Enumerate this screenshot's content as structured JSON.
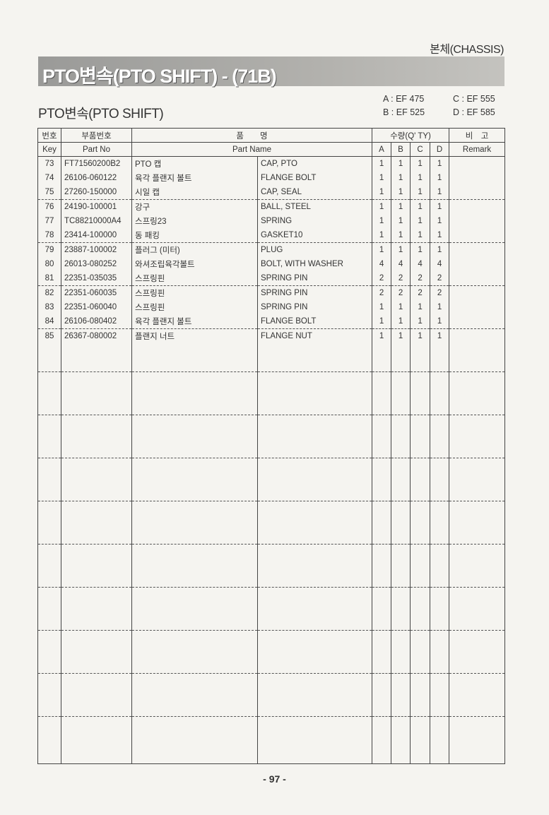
{
  "section": "본체(CHASSIS)",
  "banner_title": "PTO변속(PTO SHIFT) - (71B)",
  "subtitle": "PTO변속(PTO SHIFT)",
  "models": {
    "a": "A : EF 475",
    "b": "B : EF 525",
    "c": "C : EF 555",
    "d": "D : EF 585"
  },
  "header": {
    "key_ko": "번호",
    "key_en": "Key",
    "partno_ko": "부품번호",
    "partno_en": "Part No",
    "name_ko": "품　　명",
    "name_en": "Part Name",
    "qty": "수량(Q' TY)",
    "a": "A",
    "b": "B",
    "c": "C",
    "d": "D",
    "remark_ko": "비　고",
    "remark_en": "Remark"
  },
  "rows": [
    {
      "key": "73",
      "part_no": "FT71560200B2",
      "name_ko": "PTO 캡",
      "name_en": "CAP, PTO",
      "a": "1",
      "b": "1",
      "c": "1",
      "d": "1"
    },
    {
      "key": "74",
      "part_no": "26106-060122",
      "name_ko": "육각 플랜지 볼트",
      "name_en": "FLANGE BOLT",
      "a": "1",
      "b": "1",
      "c": "1",
      "d": "1"
    },
    {
      "key": "75",
      "part_no": "27260-150000",
      "name_ko": "시일 캡",
      "name_en": "CAP, SEAL",
      "a": "1",
      "b": "1",
      "c": "1",
      "d": "1"
    },
    {
      "key": "76",
      "part_no": "24190-100001",
      "name_ko": "강구",
      "name_en": "BALL, STEEL",
      "a": "1",
      "b": "1",
      "c": "1",
      "d": "1"
    },
    {
      "key": "77",
      "part_no": "TC88210000A4",
      "name_ko": "스프링23",
      "name_en": "SPRING",
      "a": "1",
      "b": "1",
      "c": "1",
      "d": "1"
    },
    {
      "key": "78",
      "part_no": "23414-100000",
      "name_ko": "동 패킹",
      "name_en": "GASKET10",
      "a": "1",
      "b": "1",
      "c": "1",
      "d": "1"
    },
    {
      "key": "79",
      "part_no": "23887-100002",
      "name_ko": "플러그 (미터)",
      "name_en": "PLUG",
      "a": "1",
      "b": "1",
      "c": "1",
      "d": "1"
    },
    {
      "key": "80",
      "part_no": "26013-080252",
      "name_ko": "와셔조립육각볼트",
      "name_en": "BOLT, WITH WASHER",
      "a": "4",
      "b": "4",
      "c": "4",
      "d": "4"
    },
    {
      "key": "81",
      "part_no": "22351-035035",
      "name_ko": "스프링핀",
      "name_en": "SPRING PIN",
      "a": "2",
      "b": "2",
      "c": "2",
      "d": "2"
    },
    {
      "key": "82",
      "part_no": "22351-060035",
      "name_ko": "스프링핀",
      "name_en": "SPRING PIN",
      "a": "2",
      "b": "2",
      "c": "2",
      "d": "2"
    },
    {
      "key": "83",
      "part_no": "22351-060040",
      "name_ko": "스프링핀",
      "name_en": "SPRING PIN",
      "a": "1",
      "b": "1",
      "c": "1",
      "d": "1"
    },
    {
      "key": "84",
      "part_no": "26106-080402",
      "name_ko": "육각 플랜지 볼트",
      "name_en": "FLANGE BOLT",
      "a": "1",
      "b": "1",
      "c": "1",
      "d": "1"
    },
    {
      "key": "85",
      "part_no": "26367-080002",
      "name_ko": "플랜지 너트",
      "name_en": "FLANGE NUT",
      "a": "1",
      "b": "1",
      "c": "1",
      "d": "1"
    }
  ],
  "page_number": "- 97 -"
}
